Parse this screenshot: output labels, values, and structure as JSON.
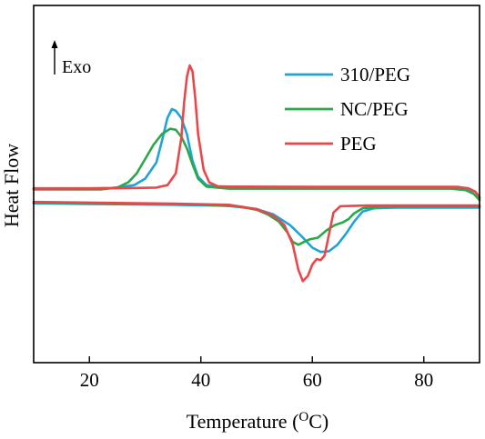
{
  "chart_data": {
    "type": "line",
    "xlabel": "Temperature (",
    "xlabel_sup": "O",
    "xlabel_unit": "C)",
    "ylabel": "Heat Flow",
    "annotation": "Exo",
    "xlim": [
      10,
      90
    ],
    "ylim": [
      0,
      1
    ],
    "x_ticks": [
      "20",
      "40",
      "60",
      "80"
    ],
    "x_tick_values": [
      20,
      40,
      60,
      80
    ],
    "grid": false,
    "legend_position": "top-right",
    "series": [
      {
        "name": "310/PEG",
        "color": "#1fa3d9",
        "cooling": [
          [
            10,
            0.488
          ],
          [
            20,
            0.488
          ],
          [
            24,
            0.489
          ],
          [
            28,
            0.497
          ],
          [
            30,
            0.515
          ],
          [
            32,
            0.56
          ],
          [
            33,
            0.62
          ],
          [
            34,
            0.685
          ],
          [
            34.8,
            0.71
          ],
          [
            35.5,
            0.705
          ],
          [
            36.5,
            0.685
          ],
          [
            37.5,
            0.64
          ],
          [
            38.5,
            0.565
          ],
          [
            39.5,
            0.52
          ],
          [
            41,
            0.497
          ],
          [
            45,
            0.49
          ],
          [
            60,
            0.489
          ],
          [
            75,
            0.489
          ],
          [
            84,
            0.489
          ],
          [
            87,
            0.487
          ],
          [
            88.5,
            0.478
          ],
          [
            90,
            0.46
          ]
        ],
        "heating": [
          [
            10,
            0.446
          ],
          [
            20,
            0.444
          ],
          [
            35,
            0.442
          ],
          [
            45,
            0.439
          ],
          [
            50,
            0.43
          ],
          [
            53,
            0.415
          ],
          [
            56,
            0.385
          ],
          [
            58,
            0.355
          ],
          [
            60,
            0.322
          ],
          [
            61.5,
            0.31
          ],
          [
            63,
            0.312
          ],
          [
            64.5,
            0.33
          ],
          [
            66,
            0.36
          ],
          [
            67.5,
            0.395
          ],
          [
            69,
            0.423
          ],
          [
            71,
            0.432
          ],
          [
            75,
            0.434
          ],
          [
            85,
            0.434
          ],
          [
            90,
            0.434
          ]
        ]
      },
      {
        "name": "NC/PEG",
        "color": "#2aa84a",
        "cooling": [
          [
            10,
            0.485
          ],
          [
            22,
            0.485
          ],
          [
            25,
            0.49
          ],
          [
            27,
            0.505
          ],
          [
            28.5,
            0.53
          ],
          [
            30,
            0.57
          ],
          [
            31.5,
            0.61
          ],
          [
            33,
            0.64
          ],
          [
            34.5,
            0.655
          ],
          [
            35.5,
            0.652
          ],
          [
            36.5,
            0.632
          ],
          [
            37.5,
            0.6
          ],
          [
            38.5,
            0.555
          ],
          [
            39.5,
            0.515
          ],
          [
            41,
            0.493
          ],
          [
            45,
            0.487
          ],
          [
            60,
            0.487
          ],
          [
            75,
            0.487
          ],
          [
            85,
            0.487
          ],
          [
            87.5,
            0.483
          ],
          [
            89,
            0.472
          ],
          [
            90,
            0.455
          ]
        ],
        "heating": [
          [
            10,
            0.448
          ],
          [
            20,
            0.447
          ],
          [
            30,
            0.445
          ],
          [
            40,
            0.443
          ],
          [
            47,
            0.437
          ],
          [
            50,
            0.428
          ],
          [
            52,
            0.415
          ],
          [
            54,
            0.395
          ],
          [
            55.5,
            0.365
          ],
          [
            56.5,
            0.338
          ],
          [
            57.5,
            0.33
          ],
          [
            58.5,
            0.338
          ],
          [
            59.5,
            0.345
          ],
          [
            61,
            0.35
          ],
          [
            62.5,
            0.37
          ],
          [
            64,
            0.385
          ],
          [
            65.5,
            0.393
          ],
          [
            66.5,
            0.402
          ],
          [
            67.5,
            0.418
          ],
          [
            69,
            0.432
          ],
          [
            72,
            0.437
          ],
          [
            80,
            0.438
          ],
          [
            90,
            0.438
          ]
        ]
      },
      {
        "name": "PEG",
        "color": "#e8484a",
        "cooling": [
          [
            10,
            0.487
          ],
          [
            25,
            0.488
          ],
          [
            32,
            0.49
          ],
          [
            34,
            0.497
          ],
          [
            35.5,
            0.53
          ],
          [
            36.5,
            0.63
          ],
          [
            37,
            0.73
          ],
          [
            37.5,
            0.8
          ],
          [
            38,
            0.832
          ],
          [
            38.5,
            0.815
          ],
          [
            39,
            0.74
          ],
          [
            39.5,
            0.64
          ],
          [
            40.5,
            0.54
          ],
          [
            41.5,
            0.505
          ],
          [
            43,
            0.494
          ],
          [
            45,
            0.493
          ],
          [
            60,
            0.492
          ],
          [
            75,
            0.492
          ],
          [
            86,
            0.492
          ],
          [
            88,
            0.488
          ],
          [
            89.3,
            0.478
          ],
          [
            90,
            0.463
          ]
        ],
        "heating": [
          [
            10,
            0.45
          ],
          [
            20,
            0.448
          ],
          [
            35,
            0.445
          ],
          [
            45,
            0.442
          ],
          [
            50,
            0.43
          ],
          [
            53,
            0.412
          ],
          [
            55,
            0.385
          ],
          [
            56.5,
            0.33
          ],
          [
            57.5,
            0.26
          ],
          [
            58.3,
            0.228
          ],
          [
            59.2,
            0.243
          ],
          [
            60,
            0.275
          ],
          [
            60.8,
            0.29
          ],
          [
            61.5,
            0.287
          ],
          [
            62.2,
            0.3
          ],
          [
            63,
            0.36
          ],
          [
            63.8,
            0.42
          ],
          [
            65,
            0.438
          ],
          [
            70,
            0.44
          ],
          [
            80,
            0.44
          ],
          [
            90,
            0.44
          ]
        ]
      }
    ]
  }
}
